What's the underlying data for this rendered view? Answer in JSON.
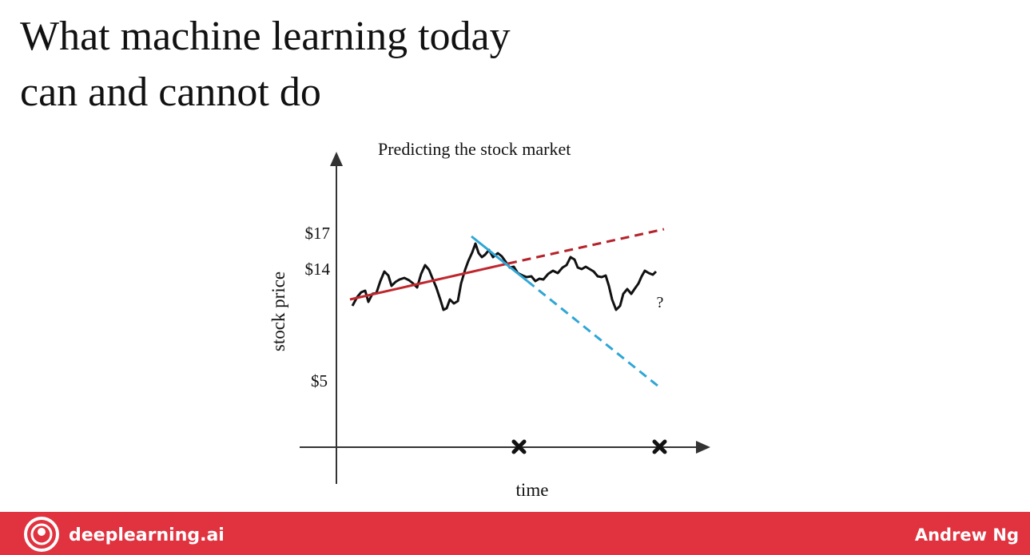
{
  "title_lines": [
    "What machine learning today",
    "can and cannot do"
  ],
  "diagram": {
    "title": "Predicting the stock market",
    "y_axis_label": "stock price",
    "x_axis_label": "time",
    "y_tick_labels": [
      "$17",
      "$14",
      "$5"
    ],
    "annotation": "?"
  },
  "footer": {
    "brand": "deeplearning.ai",
    "author": "Andrew Ng"
  }
}
